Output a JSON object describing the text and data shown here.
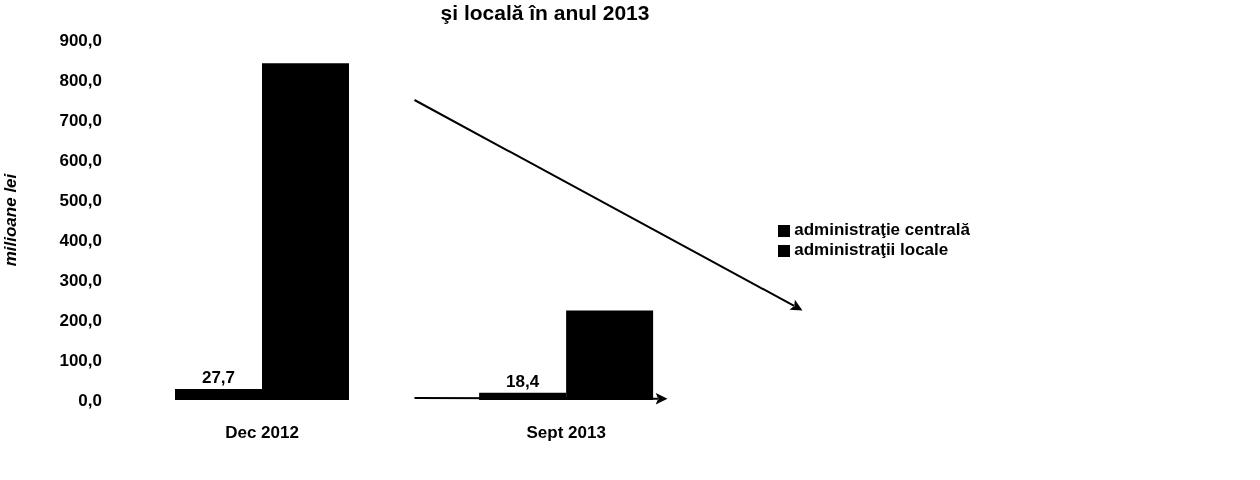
{
  "chart_data": {
    "type": "bar",
    "title": "şi locală  în anul 2013",
    "ylabel": "milioane lei",
    "categories": [
      "Dec 2012",
      "Sept 2013"
    ],
    "series": [
      {
        "name": "administraţie centrală",
        "color": "#000000",
        "values": [
          27.7,
          18.4
        ],
        "value_labels": [
          "27,7",
          "18,4"
        ]
      },
      {
        "name": "administraţii locale",
        "color": "#000000",
        "values": [
          842,
          224
        ]
      }
    ],
    "ylim": [
      0,
      900
    ],
    "yticks": [
      {
        "value": 0,
        "label": "0,0"
      },
      {
        "value": 100,
        "label": "100,0"
      },
      {
        "value": 200,
        "label": "200,0"
      },
      {
        "value": 300,
        "label": "300,0"
      },
      {
        "value": 400,
        "label": "400,0"
      },
      {
        "value": 500,
        "label": "500,0"
      },
      {
        "value": 600,
        "label": "600,0"
      },
      {
        "value": 700,
        "label": "700,0"
      },
      {
        "value": 800,
        "label": "800,0"
      },
      {
        "value": 900,
        "label": "900,0"
      }
    ],
    "legend": "right",
    "grid": false
  }
}
